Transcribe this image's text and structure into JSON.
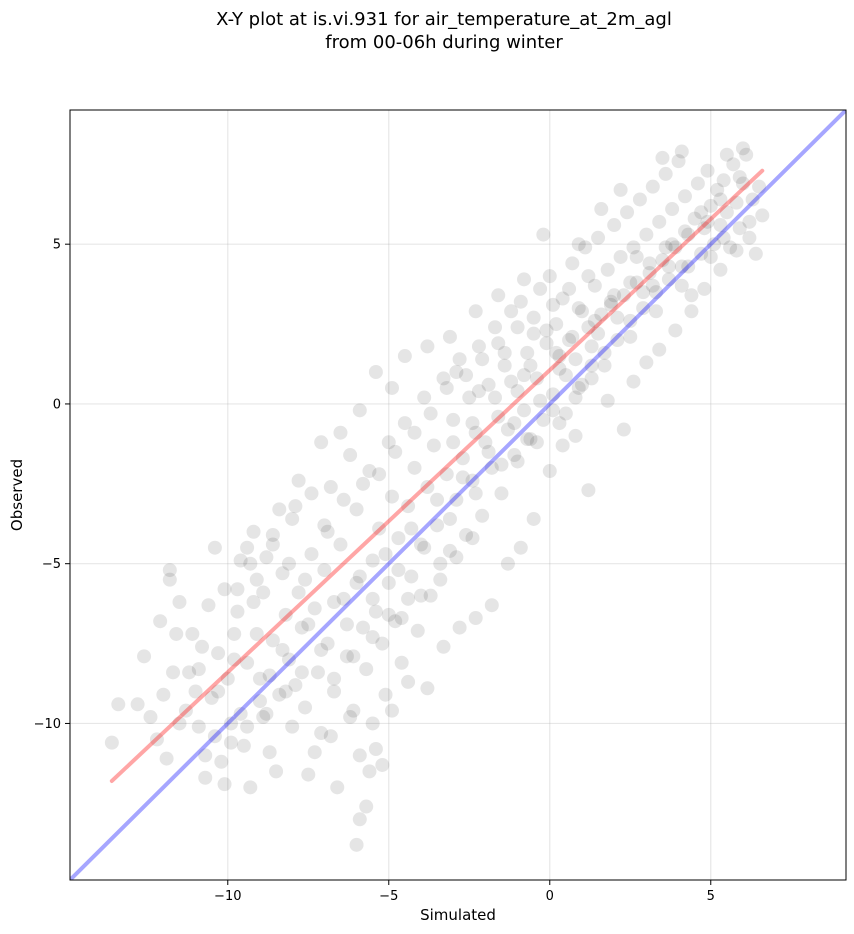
{
  "chart_data": {
    "type": "scatter",
    "title_line1": "X-Y plot at is.vi.931 for air_temperature_at_2m_agl",
    "title_line2": "from 00-06h during winter",
    "xlabel": "Simulated",
    "ylabel": "Observed",
    "xlim": [
      -14.9,
      9.2
    ],
    "ylim": [
      -14.9,
      9.2
    ],
    "x_ticks": [
      -10,
      -5,
      0,
      5
    ],
    "y_ticks": [
      -10,
      -5,
      0,
      5
    ],
    "x_tick_labels": [
      "−10",
      "−5",
      "0",
      "5"
    ],
    "y_tick_labels": [
      "−10",
      "−5",
      "0",
      "5"
    ],
    "grid": true,
    "point_color": "#000000",
    "point_opacity": 0.1,
    "lines": [
      {
        "color": "#ff0000",
        "opacity": 0.35,
        "x": [
          -13.6,
          6.6
        ],
        "y": [
          -11.8,
          7.3
        ]
      },
      {
        "color": "#0000ff",
        "opacity": 0.35,
        "x": [
          -14.9,
          9.2
        ],
        "y": [
          -14.9,
          9.2
        ]
      }
    ],
    "points": [
      [
        -13.6,
        -10.6
      ],
      [
        -13.4,
        -9.4
      ],
      [
        -12.8,
        -9.4
      ],
      [
        -12.6,
        -7.9
      ],
      [
        -12.4,
        -9.8
      ],
      [
        -12.1,
        -6.8
      ],
      [
        -12.0,
        -9.1
      ],
      [
        -11.8,
        -5.2
      ],
      [
        -11.8,
        -5.5
      ],
      [
        -11.7,
        -8.4
      ],
      [
        -11.6,
        -7.2
      ],
      [
        -11.5,
        -10.0
      ],
      [
        -11.2,
        -8.4
      ],
      [
        -11.1,
        -7.2
      ],
      [
        -11.0,
        -9.0
      ],
      [
        -10.9,
        -8.3
      ],
      [
        -10.8,
        -7.6
      ],
      [
        -10.7,
        -11.0
      ],
      [
        -10.7,
        -11.7
      ],
      [
        -10.6,
        -6.3
      ],
      [
        -10.5,
        -9.2
      ],
      [
        -10.4,
        -10.4
      ],
      [
        -10.3,
        -7.8
      ],
      [
        -10.2,
        -11.2
      ],
      [
        -10.1,
        -11.9
      ],
      [
        -10.0,
        -8.6
      ],
      [
        -9.9,
        -10.0
      ],
      [
        -9.8,
        -7.2
      ],
      [
        -9.7,
        -5.8
      ],
      [
        -9.7,
        -6.5
      ],
      [
        -9.6,
        -9.7
      ],
      [
        -9.5,
        -10.7
      ],
      [
        -9.4,
        -8.1
      ],
      [
        -9.4,
        -4.5
      ],
      [
        -9.3,
        -12.0
      ],
      [
        -9.2,
        -6.2
      ],
      [
        -9.1,
        -5.5
      ],
      [
        -9.1,
        -7.2
      ],
      [
        -9.0,
        -8.6
      ],
      [
        -8.9,
        -9.8
      ],
      [
        -8.8,
        -4.8
      ],
      [
        -8.7,
        -10.9
      ],
      [
        -8.6,
        -7.4
      ],
      [
        -8.6,
        -4.1
      ],
      [
        -8.5,
        -11.5
      ],
      [
        -8.4,
        -9.1
      ],
      [
        -8.3,
        -5.3
      ],
      [
        -8.2,
        -6.6
      ],
      [
        -8.1,
        -8.0
      ],
      [
        -8.0,
        -10.1
      ],
      [
        -7.9,
        -3.2
      ],
      [
        -7.8,
        -5.9
      ],
      [
        -7.7,
        -7.0
      ],
      [
        -7.6,
        -9.5
      ],
      [
        -7.5,
        -11.6
      ],
      [
        -7.4,
        -4.7
      ],
      [
        -7.3,
        -6.4
      ],
      [
        -7.2,
        -8.4
      ],
      [
        -7.1,
        -10.3
      ],
      [
        -7.0,
        -5.2
      ],
      [
        -7.0,
        -3.8
      ],
      [
        -6.9,
        -7.5
      ],
      [
        -6.8,
        -2.6
      ],
      [
        -6.7,
        -9.0
      ],
      [
        -6.6,
        -12.0
      ],
      [
        -6.5,
        -4.4
      ],
      [
        -6.4,
        -6.1
      ],
      [
        -6.3,
        -7.9
      ],
      [
        -6.2,
        -1.6
      ],
      [
        -6.1,
        -9.6
      ],
      [
        -6.0,
        -3.3
      ],
      [
        -6.0,
        -5.6
      ],
      [
        -5.9,
        -11.0
      ],
      [
        -5.8,
        -7.0
      ],
      [
        -5.7,
        -8.3
      ],
      [
        -5.6,
        -2.1
      ],
      [
        -5.5,
        -4.9
      ],
      [
        -5.5,
        -10.0
      ],
      [
        -5.4,
        -6.5
      ],
      [
        -5.3,
        -3.9
      ],
      [
        -5.2,
        -7.5
      ],
      [
        -5.1,
        -9.1
      ],
      [
        -5.0,
        -1.2
      ],
      [
        -5.0,
        -5.6
      ],
      [
        -4.9,
        -2.9
      ],
      [
        -4.8,
        -6.8
      ],
      [
        -4.7,
        -4.2
      ],
      [
        -4.6,
        -8.1
      ],
      [
        -4.5,
        -0.6
      ],
      [
        -4.4,
        -3.2
      ],
      [
        -4.3,
        -5.4
      ],
      [
        -4.2,
        -2.0
      ],
      [
        -4.1,
        -7.1
      ],
      [
        -4.0,
        -4.4
      ],
      [
        -3.9,
        0.2
      ],
      [
        -3.8,
        -2.6
      ],
      [
        -3.7,
        -6.0
      ],
      [
        -3.6,
        -1.3
      ],
      [
        -3.5,
        -3.8
      ],
      [
        -3.4,
        -5.0
      ],
      [
        -3.3,
        0.8
      ],
      [
        -3.2,
        -2.2
      ],
      [
        -3.1,
        -4.6
      ],
      [
        -3.0,
        -0.5
      ],
      [
        -2.9,
        -3.0
      ],
      [
        -2.8,
        1.4
      ],
      [
        -2.7,
        -1.7
      ],
      [
        -2.6,
        -4.1
      ],
      [
        -2.5,
        0.2
      ],
      [
        -2.4,
        -2.4
      ],
      [
        -2.3,
        -0.9
      ],
      [
        -2.2,
        1.8
      ],
      [
        -2.1,
        -3.5
      ],
      [
        -2.0,
        -1.2
      ],
      [
        -1.9,
        0.6
      ],
      [
        -1.8,
        -2.0
      ],
      [
        -1.7,
        2.4
      ],
      [
        -1.6,
        -0.4
      ],
      [
        -1.5,
        -2.8
      ],
      [
        -1.4,
        1.2
      ],
      [
        -1.3,
        -0.8
      ],
      [
        -1.2,
        2.9
      ],
      [
        -1.1,
        -1.6
      ],
      [
        -1.0,
        0.4
      ],
      [
        -0.9,
        3.2
      ],
      [
        -0.8,
        -0.2
      ],
      [
        -0.7,
        1.6
      ],
      [
        -0.6,
        -1.1
      ],
      [
        -0.5,
        2.2
      ],
      [
        -0.4,
        0.8
      ],
      [
        -0.3,
        3.6
      ],
      [
        -0.2,
        -0.5
      ],
      [
        -0.1,
        1.9
      ],
      [
        0.0,
        4.0
      ],
      [
        0.1,
        0.3
      ],
      [
        0.2,
        2.5
      ],
      [
        0.3,
        1.1
      ],
      [
        0.4,
        3.3
      ],
      [
        0.5,
        -0.3
      ],
      [
        0.6,
        2.0
      ],
      [
        0.7,
        4.4
      ],
      [
        0.8,
        1.4
      ],
      [
        0.9,
        3.0
      ],
      [
        1.0,
        0.6
      ],
      [
        1.1,
        4.9
      ],
      [
        1.2,
        2.4
      ],
      [
        1.3,
        1.2
      ],
      [
        1.4,
        3.7
      ],
      [
        1.5,
        5.2
      ],
      [
        1.6,
        2.8
      ],
      [
        1.7,
        1.6
      ],
      [
        1.8,
        4.2
      ],
      [
        1.9,
        3.1
      ],
      [
        2.0,
        5.6
      ],
      [
        2.1,
        2.0
      ],
      [
        2.2,
        4.6
      ],
      [
        2.3,
        3.4
      ],
      [
        2.4,
        6.0
      ],
      [
        2.5,
        2.6
      ],
      [
        2.6,
        4.9
      ],
      [
        2.7,
        3.8
      ],
      [
        2.8,
        6.4
      ],
      [
        2.9,
        3.0
      ],
      [
        3.0,
        5.3
      ],
      [
        3.1,
        4.1
      ],
      [
        3.2,
        6.8
      ],
      [
        3.3,
        3.5
      ],
      [
        3.4,
        5.7
      ],
      [
        3.5,
        4.5
      ],
      [
        3.6,
        7.2
      ],
      [
        3.7,
        3.9
      ],
      [
        3.8,
        6.1
      ],
      [
        3.9,
        4.9
      ],
      [
        4.0,
        7.6
      ],
      [
        4.1,
        4.3
      ],
      [
        4.2,
        6.5
      ],
      [
        4.3,
        5.3
      ],
      [
        4.4,
        3.4
      ],
      [
        4.5,
        5.8
      ],
      [
        4.6,
        6.9
      ],
      [
        4.7,
        4.7
      ],
      [
        4.8,
        5.5
      ],
      [
        4.9,
        7.3
      ],
      [
        5.0,
        6.2
      ],
      [
        5.1,
        5.0
      ],
      [
        5.2,
        6.7
      ],
      [
        5.3,
        5.6
      ],
      [
        5.4,
        7.0
      ],
      [
        5.5,
        6.0
      ],
      [
        5.6,
        4.9
      ],
      [
        5.7,
        7.5
      ],
      [
        5.8,
        6.3
      ],
      [
        5.9,
        5.5
      ],
      [
        6.0,
        6.9
      ],
      [
        6.1,
        7.8
      ],
      [
        6.2,
        5.7
      ],
      [
        6.3,
        6.4
      ],
      [
        6.4,
        4.7
      ],
      [
        6.5,
        6.8
      ],
      [
        6.6,
        5.9
      ],
      [
        -12.2,
        -10.5
      ],
      [
        -11.9,
        -11.1
      ],
      [
        -11.3,
        -9.6
      ],
      [
        -10.9,
        -10.1
      ],
      [
        -10.3,
        -9.0
      ],
      [
        -9.8,
        -8.0
      ],
      [
        -9.0,
        -9.3
      ],
      [
        -8.7,
        -8.5
      ],
      [
        -8.3,
        -7.7
      ],
      [
        -7.9,
        -8.8
      ],
      [
        -7.5,
        -6.9
      ],
      [
        -7.1,
        -7.7
      ],
      [
        -6.7,
        -6.2
      ],
      [
        -6.3,
        -6.9
      ],
      [
        -5.9,
        -5.4
      ],
      [
        -5.5,
        -6.1
      ],
      [
        -5.1,
        -4.7
      ],
      [
        -4.7,
        -5.2
      ],
      [
        -4.3,
        -3.9
      ],
      [
        -3.9,
        -4.5
      ],
      [
        -3.5,
        -3.0
      ],
      [
        -3.1,
        -3.6
      ],
      [
        -2.7,
        -2.3
      ],
      [
        -2.3,
        -2.8
      ],
      [
        -1.9,
        -1.5
      ],
      [
        -1.5,
        -1.9
      ],
      [
        -1.1,
        -0.6
      ],
      [
        -0.7,
        -1.1
      ],
      [
        -0.3,
        0.1
      ],
      [
        0.1,
        -0.2
      ],
      [
        0.5,
        0.9
      ],
      [
        0.9,
        0.5
      ],
      [
        1.3,
        1.8
      ],
      [
        1.7,
        1.2
      ],
      [
        2.1,
        2.7
      ],
      [
        2.5,
        2.1
      ],
      [
        2.9,
        3.5
      ],
      [
        3.3,
        2.9
      ],
      [
        3.7,
        4.3
      ],
      [
        4.1,
        3.7
      ],
      [
        -9.6,
        -4.9
      ],
      [
        -8.9,
        -5.9
      ],
      [
        -8.1,
        -5.0
      ],
      [
        -7.6,
        -5.5
      ],
      [
        -6.9,
        -4.0
      ],
      [
        -6.4,
        -3.0
      ],
      [
        -5.8,
        -2.5
      ],
      [
        -5.3,
        -2.2
      ],
      [
        -4.8,
        -1.5
      ],
      [
        -4.2,
        -0.9
      ],
      [
        -3.7,
        -0.3
      ],
      [
        -3.2,
        0.5
      ],
      [
        -2.6,
        0.9
      ],
      [
        -2.1,
        1.4
      ],
      [
        -1.6,
        1.9
      ],
      [
        -1.0,
        2.4
      ],
      [
        -0.5,
        2.7
      ],
      [
        0.1,
        3.1
      ],
      [
        0.6,
        3.6
      ],
      [
        1.2,
        4.0
      ],
      [
        -7.3,
        -10.9
      ],
      [
        -6.8,
        -10.4
      ],
      [
        -6.2,
        -9.8
      ],
      [
        -5.6,
        -11.5
      ],
      [
        -5.2,
        -11.3
      ],
      [
        -5.7,
        -12.6
      ],
      [
        -5.9,
        -13.0
      ],
      [
        -6.0,
        -13.8
      ],
      [
        -5.4,
        -10.8
      ],
      [
        -4.9,
        -9.6
      ],
      [
        -4.4,
        -8.7
      ],
      [
        -3.8,
        -8.9
      ],
      [
        -3.3,
        -7.6
      ],
      [
        -2.8,
        -7.0
      ],
      [
        -2.3,
        -6.7
      ],
      [
        -1.8,
        -6.3
      ],
      [
        -1.3,
        -5.0
      ],
      [
        -0.9,
        -4.5
      ],
      [
        -0.5,
        -3.6
      ],
      [
        0.0,
        -2.1
      ],
      [
        0.4,
        -1.3
      ],
      [
        0.8,
        -1.0
      ],
      [
        1.2,
        -2.7
      ],
      [
        1.8,
        0.1
      ],
      [
        2.3,
        -0.8
      ],
      [
        2.6,
        0.7
      ],
      [
        3.0,
        1.3
      ],
      [
        3.4,
        1.7
      ],
      [
        3.9,
        2.3
      ],
      [
        4.4,
        2.9
      ],
      [
        4.8,
        3.6
      ],
      [
        5.3,
        4.2
      ],
      [
        5.8,
        4.8
      ],
      [
        6.2,
        5.2
      ],
      [
        5.0,
        4.6
      ],
      [
        -7.1,
        -1.2
      ],
      [
        -6.5,
        -0.9
      ],
      [
        -5.9,
        -0.2
      ],
      [
        -5.4,
        1.0
      ],
      [
        -4.9,
        0.5
      ],
      [
        -4.5,
        1.5
      ],
      [
        -3.8,
        1.8
      ],
      [
        -3.1,
        2.1
      ],
      [
        -2.3,
        2.9
      ],
      [
        -1.6,
        3.4
      ],
      [
        -0.8,
        3.9
      ],
      [
        -0.2,
        5.3
      ],
      [
        0.9,
        5.0
      ],
      [
        1.6,
        6.1
      ],
      [
        2.2,
        6.7
      ],
      [
        3.5,
        7.7
      ],
      [
        4.1,
        7.9
      ],
      [
        5.5,
        7.8
      ],
      [
        6.0,
        8.0
      ],
      [
        5.9,
        7.1
      ],
      [
        -10.4,
        -4.5
      ],
      [
        -9.2,
        -4.0
      ],
      [
        -8.4,
        -3.3
      ],
      [
        -7.8,
        -2.4
      ],
      [
        -7.4,
        -2.8
      ],
      [
        -11.5,
        -6.2
      ],
      [
        -10.1,
        -5.8
      ],
      [
        -9.3,
        -5.0
      ],
      [
        -8.6,
        -4.4
      ],
      [
        -8.0,
        -3.6
      ],
      [
        -3.0,
        -1.2
      ],
      [
        -2.4,
        -0.6
      ],
      [
        -1.7,
        0.2
      ],
      [
        -1.2,
        0.7
      ],
      [
        -0.6,
        1.2
      ],
      [
        0.2,
        1.6
      ],
      [
        0.7,
        2.1
      ],
      [
        1.4,
        2.6
      ],
      [
        1.9,
        3.2
      ],
      [
        2.5,
        3.8
      ],
      [
        3.1,
        4.4
      ],
      [
        3.6,
        4.9
      ],
      [
        4.2,
        5.4
      ],
      [
        4.7,
        6.0
      ],
      [
        5.3,
        6.4
      ],
      [
        -2.9,
        1.0
      ],
      [
        -2.2,
        0.4
      ],
      [
        -1.4,
        1.6
      ],
      [
        -0.8,
        0.9
      ],
      [
        -0.1,
        2.3
      ],
      [
        0.3,
        1.5
      ],
      [
        1.0,
        2.9
      ],
      [
        1.5,
        2.2
      ],
      [
        2.0,
        3.4
      ],
      [
        2.7,
        4.6
      ],
      [
        3.2,
        3.7
      ],
      [
        3.8,
        5.0
      ],
      [
        4.3,
        4.3
      ],
      [
        4.9,
        5.7
      ],
      [
        5.4,
        5.2
      ],
      [
        -1.0,
        -1.8
      ],
      [
        -0.4,
        -1.2
      ],
      [
        0.3,
        -0.6
      ],
      [
        0.8,
        0.2
      ],
      [
        1.3,
        0.8
      ],
      [
        -4.6,
        -6.7
      ],
      [
        -4.0,
        -6.0
      ],
      [
        -3.4,
        -5.5
      ],
      [
        -2.9,
        -4.8
      ],
      [
        -2.4,
        -4.2
      ],
      [
        -6.7,
        -8.6
      ],
      [
        -6.1,
        -7.9
      ],
      [
        -5.5,
        -7.3
      ],
      [
        -5.0,
        -6.6
      ],
      [
        -4.4,
        -6.1
      ],
      [
        -9.9,
        -10.6
      ],
      [
        -9.4,
        -10.1
      ],
      [
        -8.8,
        -9.7
      ],
      [
        -8.2,
        -9.0
      ],
      [
        -7.7,
        -8.4
      ]
    ]
  }
}
